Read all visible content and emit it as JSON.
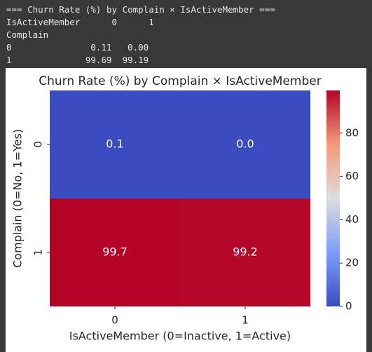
{
  "console": {
    "lines": [
      "=== Churn Rate (%) by Complain × IsActiveMember ===",
      "IsActiveMember      0      1",
      "Complain",
      "0               0.11   0.00",
      "1              99.69  99.19"
    ]
  },
  "chart_data": {
    "type": "heatmap",
    "title": "Churn Rate (%) by Complain × IsActiveMember",
    "xlabel": "IsActiveMember (0=Inactive, 1=Active)",
    "ylabel": "Complain (0=No, 1=Yes)",
    "x_categories": [
      "0",
      "1"
    ],
    "y_categories": [
      "0",
      "1"
    ],
    "values": [
      [
        0.11,
        0.0
      ],
      [
        99.69,
        99.19
      ]
    ],
    "value_labels": [
      [
        "0.1",
        "0.0"
      ],
      [
        "99.7",
        "99.2"
      ]
    ],
    "colormap": "coolwarm",
    "clim": [
      0,
      99.69
    ],
    "cticks": [
      0,
      20,
      40,
      60,
      80
    ]
  }
}
